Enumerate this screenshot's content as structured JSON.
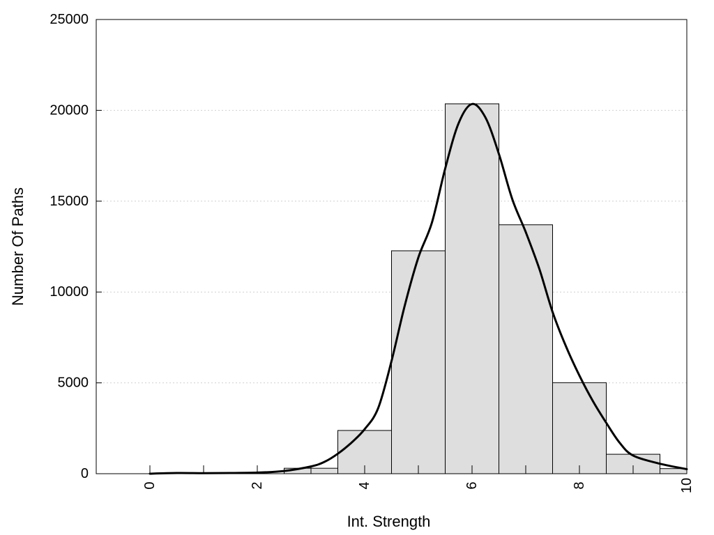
{
  "chart_data": {
    "type": "bar",
    "title": "",
    "xlabel": "Int. Strength",
    "ylabel": "Number Of Paths",
    "xlim": [
      -1,
      10
    ],
    "ylim": [
      0,
      25000
    ],
    "x_ticks": [
      0,
      2,
      4,
      6,
      8,
      10
    ],
    "y_ticks": [
      0,
      5000,
      10000,
      15000,
      20000,
      25000
    ],
    "grid": "horizontal dotted",
    "legend": "none",
    "bar_color": "#dedede",
    "bar_edge_color": "#000000",
    "curve_color": "#000000",
    "bars": [
      {
        "x": 0,
        "value": 0
      },
      {
        "x": 1,
        "value": 0
      },
      {
        "x": 2,
        "value": 0
      },
      {
        "x": 3,
        "value": 300
      },
      {
        "x": 4,
        "value": 2380
      },
      {
        "x": 5,
        "value": 12270
      },
      {
        "x": 6,
        "value": 20360
      },
      {
        "x": 7,
        "value": 13700
      },
      {
        "x": 8,
        "value": 5010
      },
      {
        "x": 9,
        "value": 1070
      },
      {
        "x": 10,
        "value": 280
      }
    ],
    "density_curve": {
      "x": [
        0,
        0.5,
        1,
        1.5,
        2,
        2.5,
        3,
        3.25,
        3.5,
        3.75,
        4,
        4.25,
        4.5,
        4.75,
        5,
        5.25,
        5.5,
        5.75,
        6,
        6.25,
        6.5,
        6.75,
        7,
        7.25,
        7.5,
        7.75,
        8,
        8.25,
        8.5,
        8.75,
        9,
        9.5,
        10
      ],
      "y": [
        0,
        40,
        30,
        40,
        60,
        150,
        400,
        650,
        1100,
        1700,
        2450,
        3600,
        6200,
        9300,
        11900,
        13800,
        16800,
        19300,
        20350,
        19600,
        17600,
        15100,
        13300,
        11300,
        8900,
        7000,
        5400,
        4000,
        2800,
        1700,
        1000,
        550,
        250
      ]
    }
  }
}
